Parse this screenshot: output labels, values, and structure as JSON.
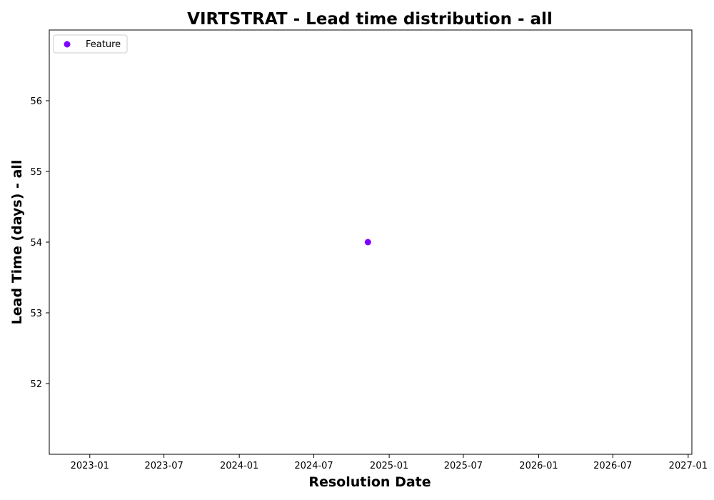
{
  "chart_data": {
    "type": "scatter",
    "title": "VIRTSTRAT - Lead time distribution - all",
    "xlabel": "Resolution Date",
    "ylabel": "Lead Time (days) - all",
    "x_tick_labels": [
      "2023-01",
      "2023-07",
      "2024-01",
      "2024-07",
      "2025-01",
      "2025-07",
      "2026-01",
      "2026-07",
      "2027-01"
    ],
    "y_tick_labels": [
      "52",
      "53",
      "54",
      "55",
      "56"
    ],
    "y_ticks": [
      52,
      53,
      54,
      55,
      56
    ],
    "x_range": [
      "2022-09-24",
      "2027-01-10"
    ],
    "ylim": [
      51,
      57
    ],
    "grid": false,
    "legend_position": "upper-left",
    "series": [
      {
        "name": "Feature",
        "color": "#7f00ff",
        "points": [
          {
            "x": "2024-11-10",
            "y": 54
          }
        ]
      }
    ]
  }
}
